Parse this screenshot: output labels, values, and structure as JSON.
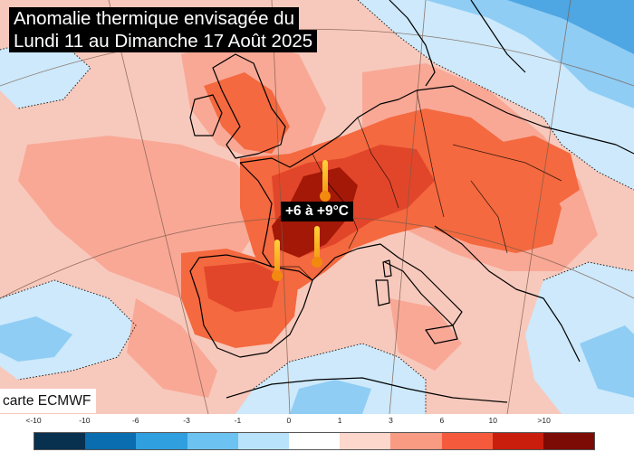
{
  "title": {
    "line1": "Anomalie thermique envisagée du",
    "line2": "Lundi 11 au Dimanche 17 Août 2025"
  },
  "credit": "carte ECMWF",
  "callout": "+6 à +9°C",
  "thermometers": [
    {
      "name": "paris-thermometer",
      "icon": "thermometer-icon"
    },
    {
      "name": "bordeaux-thermometer",
      "icon": "thermometer-icon"
    },
    {
      "name": "toulouse-thermometer",
      "icon": "thermometer-icon"
    }
  ],
  "legend": {
    "ticks": [
      "<-10",
      "-10",
      "-6",
      "-3",
      "-1",
      "0",
      "1",
      "3",
      "6",
      "10",
      ">10"
    ],
    "colors": [
      "#08304f",
      "#0a6db0",
      "#2f9fe0",
      "#6cc3f1",
      "#b9e3fb",
      "#ffffff",
      "#fdd6cc",
      "#f99a83",
      "#f55a3c",
      "#c91e0e",
      "#7c0b06"
    ]
  },
  "map_colors": {
    "background": "#f7c9bc",
    "weak": "#f9a896",
    "moderate": "#f4693f",
    "strong": "#e2462a",
    "extreme": "#a31807",
    "cool_light": "#cde9fb",
    "cool": "#8fcdf4",
    "cool_strong": "#4ea6e3"
  }
}
